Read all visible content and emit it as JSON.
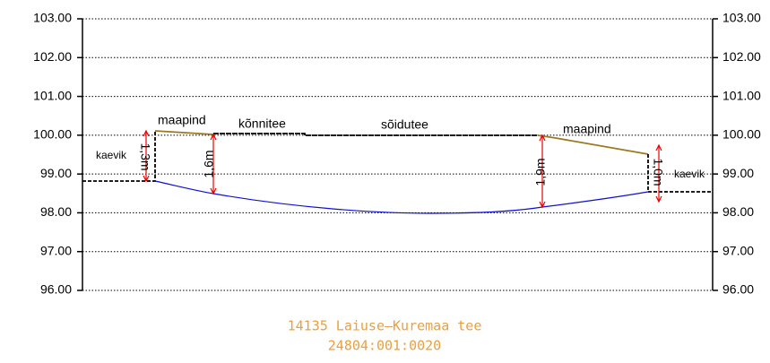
{
  "axis": {
    "ticks": [
      "103.00",
      "102.00",
      "101.00",
      "100.00",
      "99.00",
      "98.00",
      "97.00",
      "96.00"
    ]
  },
  "labels": {
    "ground_left": "maapind",
    "sidewalk": "kõnnitee",
    "road": "sõidutee",
    "ground_right": "maapind",
    "trench_left": "kaevik",
    "depth_left": "1,3m",
    "depth_sidewalk": "1,6m",
    "depth_road": "1,9m",
    "depth_right": "1,0m",
    "trench_right": "kaevik"
  },
  "title": {
    "line1": "14135 Laiuse–Kuremaa tee",
    "line2": "24804:001:0020"
  }
}
